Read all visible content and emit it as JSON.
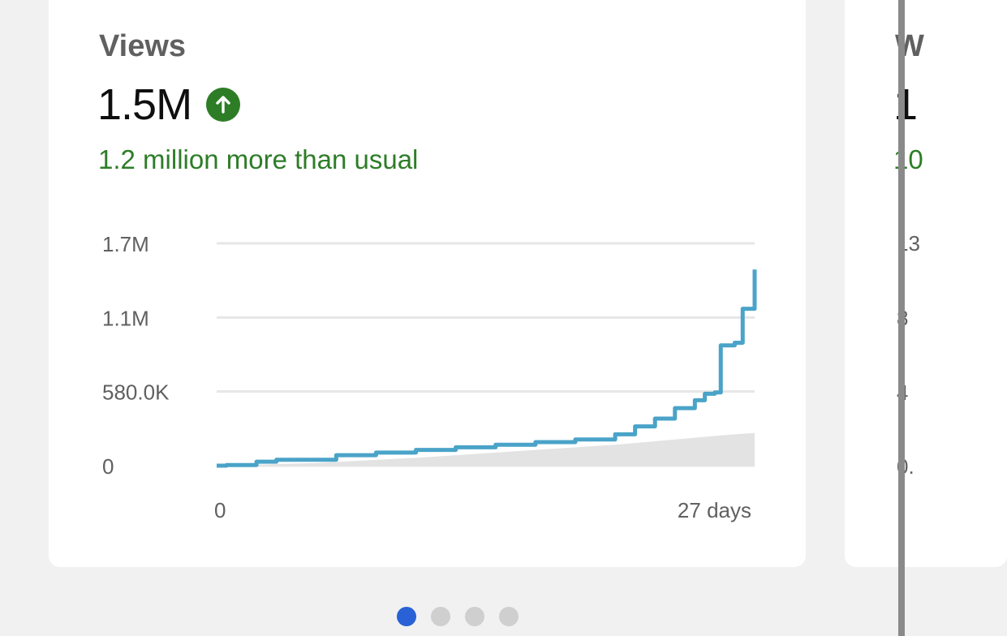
{
  "views_card": {
    "title": "Views",
    "value": "1.5M",
    "trend_icon": "arrow-up-circle-icon",
    "comparison": "1.2 million more than usual",
    "chart_data": {
      "type": "line",
      "x_range_days": [
        0,
        27
      ],
      "y_range": [
        0,
        1700000
      ],
      "y_ticks": [
        "1.7M",
        "1.1M",
        "580.0K",
        "0"
      ],
      "x_ticks": [
        "0",
        "27 days"
      ],
      "series": [
        {
          "name": "",
          "color": "#4aa3c8",
          "x": [
            0,
            0.5,
            2,
            3,
            6,
            8,
            10,
            12,
            14,
            16,
            18,
            20,
            21,
            22,
            23,
            24,
            24.5,
            25,
            25.3,
            25.6,
            26,
            26.4,
            27
          ],
          "y": [
            0,
            5000,
            30000,
            45000,
            80000,
            100000,
            120000,
            140000,
            160000,
            180000,
            200000,
            240000,
            300000,
            360000,
            440000,
            500000,
            550000,
            560000,
            920000,
            920000,
            940000,
            1200000,
            1500000
          ]
        },
        {
          "name": "",
          "color": "#e3e3e3",
          "x": [
            0,
            5,
            10,
            15,
            20,
            23,
            26,
            27
          ],
          "y": [
            0,
            20000,
            60000,
            110000,
            160000,
            200000,
            240000,
            250000
          ]
        }
      ]
    }
  },
  "next_card": {
    "title": "W",
    "value": "1",
    "comparison": "10",
    "y_ticks": [
      "13",
      "8",
      "4",
      "0."
    ]
  },
  "pagination": {
    "count": 4,
    "active_index": 0
  }
}
